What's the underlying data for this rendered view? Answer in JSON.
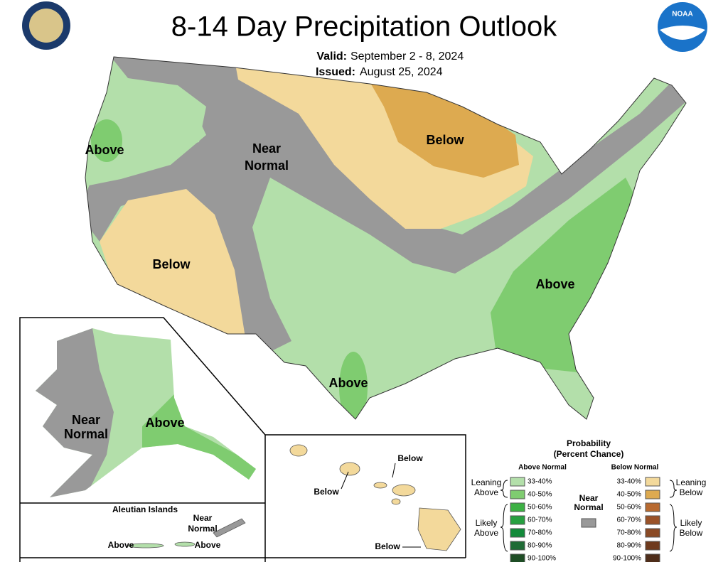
{
  "header": {
    "title": "8-14 Day Precipitation Outlook",
    "valid_label": "Valid:",
    "valid": "September 2 - 8, 2024",
    "issued_label": "Issued:",
    "issued": "August 25, 2024",
    "noaa_logo": "NOAA"
  },
  "conus": {
    "labels": [
      [
        "Above"
      ],
      [
        "Near",
        "Normal"
      ],
      [
        "Below"
      ],
      [
        "Below"
      ],
      [
        "Above"
      ],
      [
        "Above"
      ]
    ]
  },
  "alaska": {
    "labels": [
      [
        "Near",
        "Normal"
      ],
      [
        "Above"
      ]
    ]
  },
  "aleutians": {
    "title": "Aleutian Islands",
    "labels": [
      [
        "Near",
        "Normal"
      ],
      [
        "Above"
      ],
      [
        "Above"
      ]
    ]
  },
  "hawaii": {
    "labels": [
      [
        "Below"
      ],
      [
        "Below"
      ],
      [
        "Below"
      ]
    ]
  },
  "legend": {
    "title": [
      "Probability",
      "(Percent Chance)"
    ],
    "above_header": "Above Normal",
    "below_header": "Below Normal",
    "near_normal": [
      "Near",
      "Normal"
    ],
    "leaning_above": [
      "Leaning",
      "Above"
    ],
    "likely_above": [
      "Likely",
      "Above"
    ],
    "leaning_below": [
      "Leaning",
      "Below"
    ],
    "likely_below": [
      "Likely",
      "Below"
    ],
    "above": [
      "33-40%",
      "40-50%",
      "50-60%",
      "60-70%",
      "70-80%",
      "80-90%",
      "90-100%"
    ],
    "below": [
      "33-40%",
      "40-50%",
      "50-60%",
      "60-70%",
      "70-80%",
      "80-90%",
      "90-100%"
    ]
  }
}
